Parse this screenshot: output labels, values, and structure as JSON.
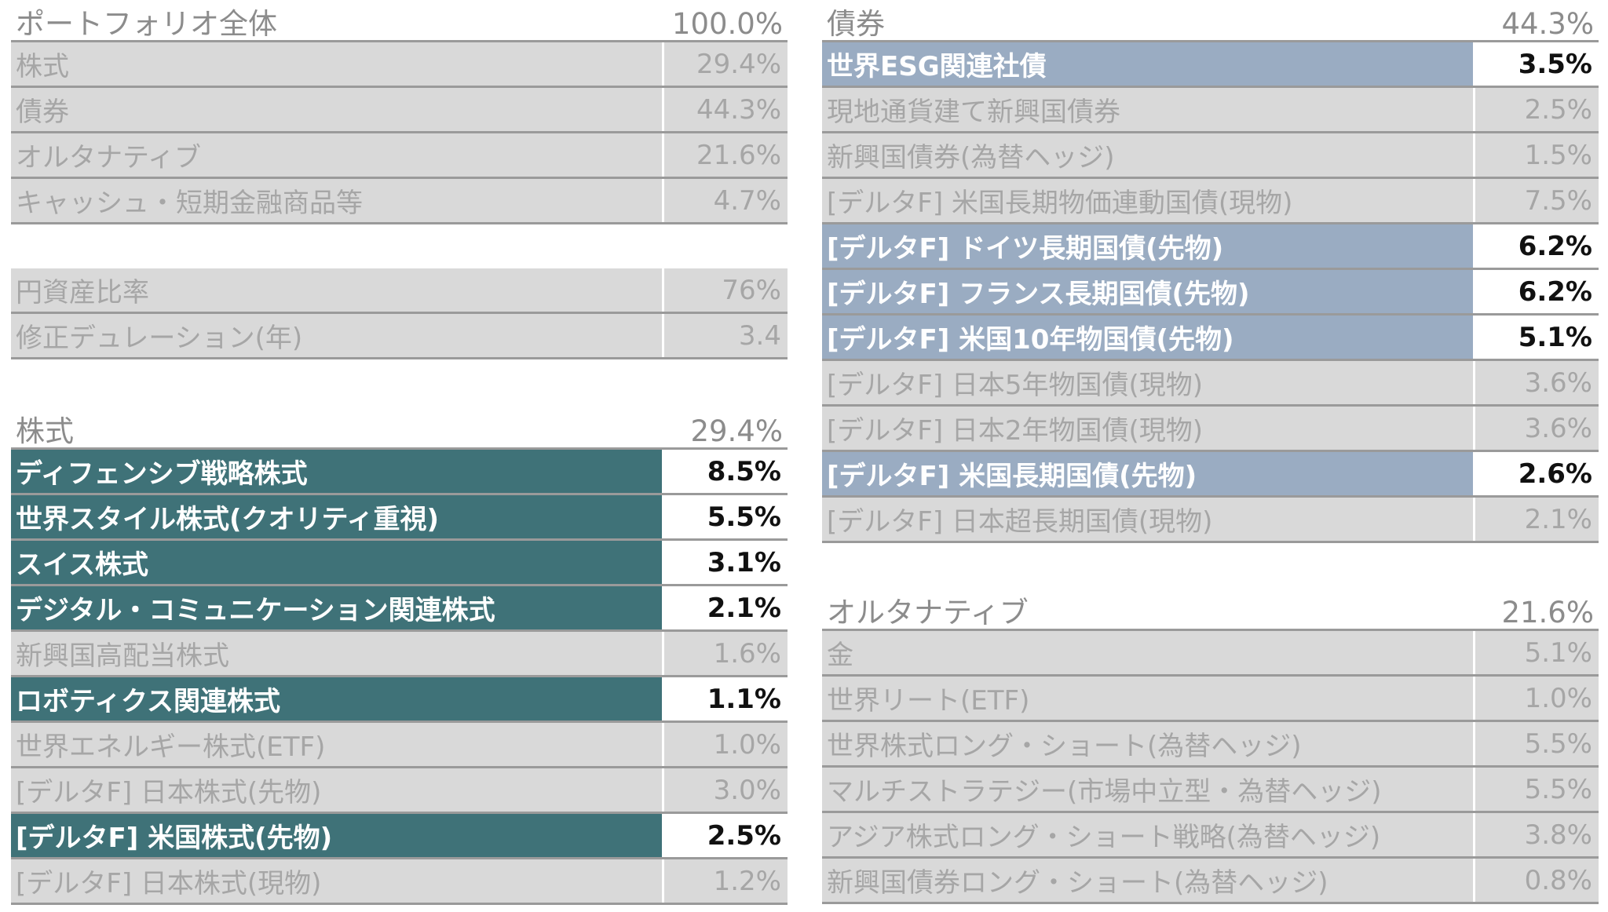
{
  "portfolio": {
    "title": "ポートフォリオ全体",
    "total": "100.0%",
    "rows": [
      {
        "label": "株式",
        "value": "29.4%",
        "highlight": "none"
      },
      {
        "label": "債券",
        "value": "44.3%",
        "highlight": "none"
      },
      {
        "label": "オルタナティブ",
        "value": "21.6%",
        "highlight": "none"
      },
      {
        "label": "キャッシュ・短期金融商品等",
        "value": "4.7%",
        "highlight": "none"
      }
    ]
  },
  "metrics": {
    "rows": [
      {
        "label": "円資産比率",
        "value": "76%",
        "highlight": "none"
      },
      {
        "label": "修正デュレーション(年)",
        "value": "3.4",
        "highlight": "none"
      }
    ]
  },
  "equity": {
    "title": "株式",
    "total": "29.4%",
    "rows": [
      {
        "label": "ディフェンシブ戦略株式",
        "value": "8.5%",
        "highlight": "teal"
      },
      {
        "label": "世界スタイル株式(クオリティ重視)",
        "value": "5.5%",
        "highlight": "teal"
      },
      {
        "label": "スイス株式",
        "value": "3.1%",
        "highlight": "teal"
      },
      {
        "label": "デジタル・コミュニケーション関連株式",
        "value": "2.1%",
        "highlight": "teal"
      },
      {
        "label": "新興国高配当株式",
        "value": "1.6%",
        "highlight": "none"
      },
      {
        "label": "ロボティクス関連株式",
        "value": "1.1%",
        "highlight": "teal"
      },
      {
        "label": "世界エネルギー株式(ETF)",
        "value": "1.0%",
        "highlight": "none"
      },
      {
        "label": "[デルタF] 日本株式(先物)",
        "value": "3.0%",
        "highlight": "none"
      },
      {
        "label": "[デルタF] 米国株式(先物)",
        "value": "2.5%",
        "highlight": "teal"
      },
      {
        "label": "[デルタF] 日本株式(現物)",
        "value": "1.2%",
        "highlight": "none"
      }
    ]
  },
  "bonds": {
    "title": "債券",
    "total": "44.3%",
    "rows": [
      {
        "label": "世界ESG関連社債",
        "value": "3.5%",
        "highlight": "blue"
      },
      {
        "label": "現地通貨建て新興国債券",
        "value": "2.5%",
        "highlight": "none"
      },
      {
        "label": "新興国債券(為替ヘッジ)",
        "value": "1.5%",
        "highlight": "none"
      },
      {
        "label": "[デルタF] 米国長期物価連動国債(現物)",
        "value": "7.5%",
        "highlight": "none"
      },
      {
        "label": "[デルタF] ドイツ長期国債(先物)",
        "value": "6.2%",
        "highlight": "blue"
      },
      {
        "label": "[デルタF] フランス長期国債(先物)",
        "value": "6.2%",
        "highlight": "blue"
      },
      {
        "label": "[デルタF] 米国10年物国債(先物)",
        "value": "5.1%",
        "highlight": "blue"
      },
      {
        "label": "[デルタF] 日本5年物国債(現物)",
        "value": "3.6%",
        "highlight": "none"
      },
      {
        "label": "[デルタF] 日本2年物国債(現物)",
        "value": "3.6%",
        "highlight": "none"
      },
      {
        "label": "[デルタF] 米国長期国債(先物)",
        "value": "2.6%",
        "highlight": "blue"
      },
      {
        "label": "[デルタF] 日本超長期国債(現物)",
        "value": "2.1%",
        "highlight": "none"
      }
    ]
  },
  "alternatives": {
    "title": "オルタナティブ",
    "total": "21.6%",
    "rows": [
      {
        "label": "金",
        "value": "5.1%",
        "highlight": "none"
      },
      {
        "label": "世界リート(ETF)",
        "value": "1.0%",
        "highlight": "none"
      },
      {
        "label": "世界株式ロング・ショート(為替ヘッジ)",
        "value": "5.5%",
        "highlight": "none"
      },
      {
        "label": "マルチストラテジー(市場中立型・為替ヘッジ)",
        "value": "5.5%",
        "highlight": "none"
      },
      {
        "label": "アジア株式ロング・ショート戦略(為替ヘッジ)",
        "value": "3.8%",
        "highlight": "none"
      },
      {
        "label": "新興国債券ロング・ショート(為替ヘッジ)",
        "value": "0.8%",
        "highlight": "none"
      }
    ]
  },
  "colors": {
    "teal_highlight": "#3f7278",
    "blue_highlight": "#9aacc2",
    "gray_row": "#d9d9d9",
    "gray_text": "#a6a6a6"
  }
}
